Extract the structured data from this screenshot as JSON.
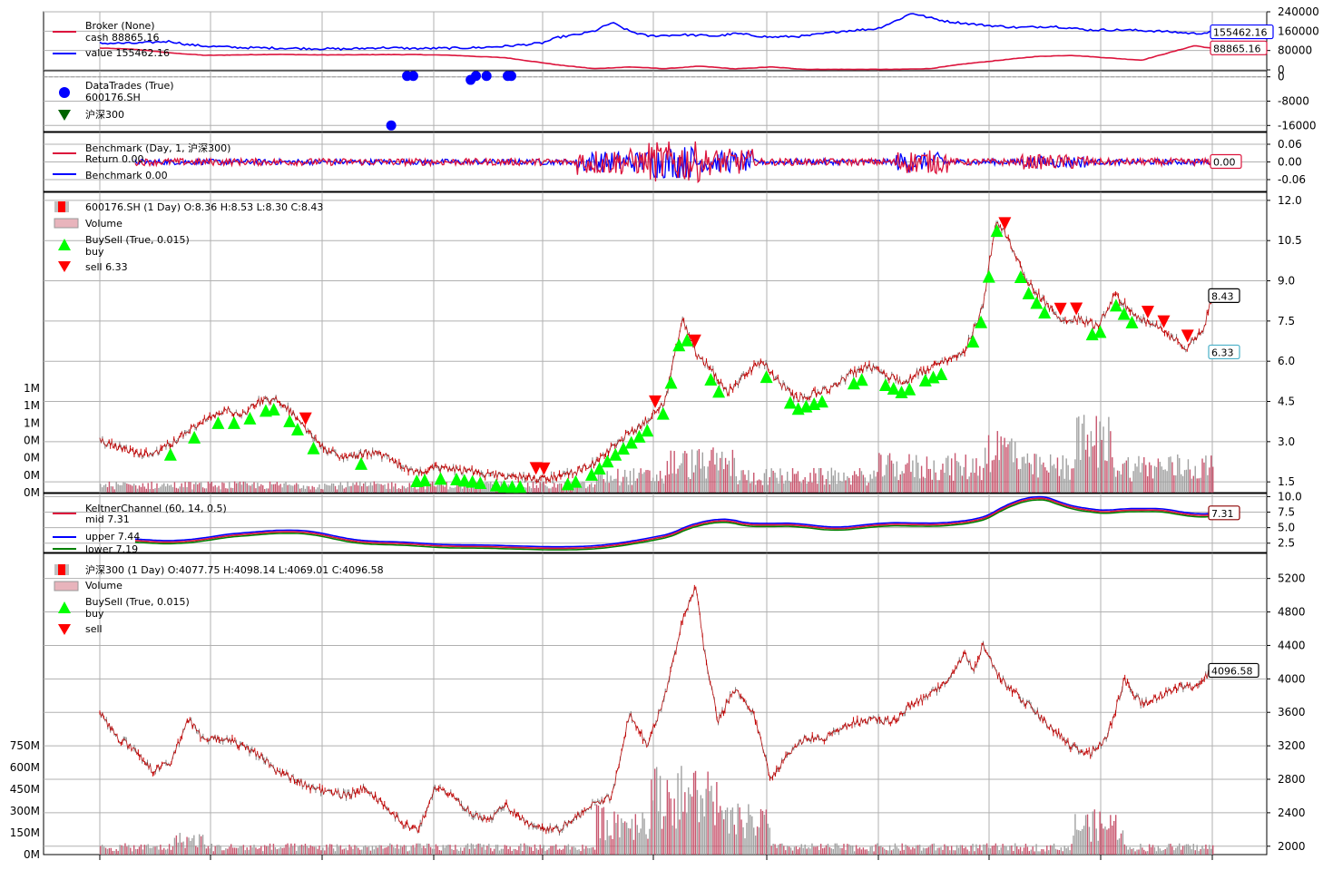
{
  "chart_data": [
    {
      "type": "line",
      "panel": "broker",
      "legend_title": "Broker (None)",
      "series": [
        {
          "name": "cash 88865.16",
          "color": "#dc143c",
          "points": [
            [
              0,
              90000
            ],
            [
              40,
              85000
            ],
            [
              80,
              70000
            ],
            [
              120,
              60000
            ],
            [
              160,
              62000
            ],
            [
              200,
              64000
            ],
            [
              240,
              62000
            ],
            [
              280,
              62000
            ],
            [
              320,
              63000
            ],
            [
              360,
              63000
            ],
            [
              400,
              60000
            ],
            [
              460,
              50000
            ],
            [
              520,
              20000
            ],
            [
              560,
              5000
            ],
            [
              600,
              12000
            ],
            [
              640,
              5000
            ],
            [
              680,
              15000
            ],
            [
              720,
              4000
            ],
            [
              760,
              12000
            ],
            [
              800,
              2000
            ],
            [
              860,
              2000
            ],
            [
              900,
              2000
            ],
            [
              940,
              5000
            ],
            [
              980,
              25000
            ],
            [
              1020,
              40000
            ],
            [
              1060,
              55000
            ],
            [
              1100,
              60000
            ],
            [
              1140,
              50000
            ],
            [
              1180,
              40000
            ],
            [
              1220,
              80000
            ],
            [
              1240,
              100000
            ],
            [
              1260,
              88865
            ]
          ]
        },
        {
          "name": "value 155462.16",
          "color": "#0000ff",
          "points": [
            [
              0,
              110000
            ],
            [
              40,
              110000
            ],
            [
              80,
              118000
            ],
            [
              100,
              104000
            ],
            [
              120,
              98000
            ],
            [
              160,
              92000
            ],
            [
              200,
              90000
            ],
            [
              240,
              88000
            ],
            [
              280,
              86000
            ],
            [
              320,
              92000
            ],
            [
              360,
              88000
            ],
            [
              400,
              90000
            ],
            [
              430,
              92000
            ],
            [
              460,
              98000
            ],
            [
              500,
              110000
            ],
            [
              520,
              135000
            ],
            [
              540,
              145000
            ],
            [
              560,
              160000
            ],
            [
              580,
              195000
            ],
            [
              600,
              160000
            ],
            [
              620,
              140000
            ],
            [
              660,
              145000
            ],
            [
              700,
              140000
            ],
            [
              720,
              150000
            ],
            [
              760,
              135000
            ],
            [
              800,
              140000
            ],
            [
              840,
              160000
            ],
            [
              880,
              170000
            ],
            [
              900,
              200000
            ],
            [
              920,
              235000
            ],
            [
              940,
              215000
            ],
            [
              960,
              200000
            ],
            [
              1000,
              185000
            ],
            [
              1040,
              175000
            ],
            [
              1080,
              180000
            ],
            [
              1120,
              165000
            ],
            [
              1160,
              165000
            ],
            [
              1200,
              160000
            ],
            [
              1240,
              150000
            ],
            [
              1260,
              155462
            ]
          ]
        }
      ],
      "y_ticks": [
        "240000",
        "160000",
        "80000",
        "0"
      ],
      "ylim": [
        0,
        240000
      ],
      "last_labels": [
        "155462.16",
        "88865.16"
      ]
    },
    {
      "type": "scatter",
      "panel": "trades",
      "legend_title": "DataTrades (True)",
      "legend": [
        "600176.SH",
        "沪深300"
      ],
      "points": [
        [
          348,
          0
        ],
        [
          355,
          0
        ],
        [
          420,
          -1000
        ],
        [
          426,
          0
        ],
        [
          438,
          0
        ],
        [
          462,
          0
        ],
        [
          466,
          0
        ],
        [
          330,
          -16000
        ]
      ],
      "y_ticks": [
        "0",
        "-8000",
        "-16000"
      ],
      "ylim": [
        -18000,
        2000
      ]
    },
    {
      "type": "line",
      "panel": "benchmark",
      "legend_title": "Benchmark (Day, 1, 沪深300)",
      "series": [
        {
          "name": "Return 0.00",
          "color": "#dc143c"
        },
        {
          "name": "Benchmark 0.00",
          "color": "#0000ff"
        }
      ],
      "y_ticks": [
        "0.06",
        "0.00",
        "-0.06"
      ],
      "ylim": [
        -0.1,
        0.1
      ],
      "last_label": "0.00"
    },
    {
      "type": "line",
      "panel": "stock",
      "legend": [
        "600176.SH (1 Day) O:8.36 H:8.53 L:8.30 C:8.43",
        "Volume",
        "BuySell (True, 0.015)",
        "buy",
        "sell 6.33"
      ],
      "close_points": [
        [
          0,
          3.1
        ],
        [
          20,
          2.8
        ],
        [
          40,
          2.6
        ],
        [
          60,
          2.5
        ],
        [
          80,
          2.9
        ],
        [
          100,
          3.4
        ],
        [
          120,
          3.8
        ],
        [
          140,
          4.2
        ],
        [
          160,
          4.0
        ],
        [
          180,
          4.5
        ],
        [
          200,
          4.6
        ],
        [
          220,
          4.0
        ],
        [
          240,
          3.2
        ],
        [
          260,
          2.6
        ],
        [
          280,
          2.4
        ],
        [
          300,
          2.6
        ],
        [
          320,
          2.5
        ],
        [
          340,
          2.1
        ],
        [
          360,
          1.9
        ],
        [
          380,
          2.0
        ],
        [
          400,
          2.0
        ],
        [
          420,
          1.9
        ],
        [
          440,
          1.8
        ],
        [
          460,
          1.7
        ],
        [
          480,
          1.7
        ],
        [
          500,
          1.6
        ],
        [
          520,
          1.7
        ],
        [
          540,
          1.9
        ],
        [
          560,
          2.2
        ],
        [
          580,
          2.8
        ],
        [
          600,
          3.3
        ],
        [
          620,
          3.8
        ],
        [
          640,
          4.5
        ],
        [
          660,
          7.6
        ],
        [
          675,
          6.3
        ],
        [
          690,
          5.8
        ],
        [
          710,
          4.8
        ],
        [
          730,
          5.5
        ],
        [
          750,
          6.0
        ],
        [
          770,
          5.2
        ],
        [
          790,
          4.6
        ],
        [
          810,
          4.8
        ],
        [
          830,
          5.0
        ],
        [
          850,
          5.5
        ],
        [
          870,
          5.8
        ],
        [
          890,
          5.5
        ],
        [
          910,
          5.2
        ],
        [
          930,
          5.6
        ],
        [
          960,
          6.0
        ],
        [
          980,
          6.4
        ],
        [
          1000,
          8.0
        ],
        [
          1015,
          11.3
        ],
        [
          1030,
          10.5
        ],
        [
          1050,
          9.0
        ],
        [
          1070,
          8.2
        ],
        [
          1090,
          7.5
        ],
        [
          1110,
          7.6
        ],
        [
          1130,
          7.3
        ],
        [
          1150,
          8.5
        ],
        [
          1170,
          7.8
        ],
        [
          1190,
          7.4
        ],
        [
          1210,
          7.0
        ],
        [
          1230,
          6.5
        ],
        [
          1250,
          7.2
        ],
        [
          1260,
          8.43
        ]
      ],
      "y_ticks": [
        "12.0",
        "10.5",
        "9.0",
        "7.5",
        "6.0",
        "4.5",
        "3.0",
        "1.5"
      ],
      "ylim": [
        1.1,
        12.3
      ],
      "vol_ticks": [
        "1M",
        "1M",
        "1M",
        "0M",
        "0M",
        "0M",
        "0M"
      ],
      "last_labels": [
        "8.43",
        "6.33"
      ]
    },
    {
      "type": "line",
      "panel": "keltner",
      "legend_title": "KeltnerChannel (60, 14, 0.5)",
      "series": [
        {
          "name": "mid 7.31",
          "color": "#dc143c"
        },
        {
          "name": "upper 7.44",
          "color": "#0000ff"
        },
        {
          "name": "lower 7.19",
          "color": "#008000"
        }
      ],
      "y_ticks": [
        "10.0",
        "7.5",
        "5.0",
        "2.5"
      ],
      "ylim": [
        1.0,
        10.5
      ],
      "last_label": "7.31"
    },
    {
      "type": "line",
      "panel": "index",
      "legend": [
        "沪深300 (1 Day) O:4077.75 H:4098.14 L:4069.01 C:4096.58",
        "Volume",
        "BuySell (True, 0.015)",
        "buy",
        "sell"
      ],
      "close_points": [
        [
          0,
          3600
        ],
        [
          20,
          3300
        ],
        [
          40,
          3150
        ],
        [
          60,
          2900
        ],
        [
          80,
          3000
        ],
        [
          100,
          3500
        ],
        [
          120,
          3250
        ],
        [
          140,
          3300
        ],
        [
          160,
          3200
        ],
        [
          180,
          3100
        ],
        [
          200,
          2900
        ],
        [
          220,
          2800
        ],
        [
          240,
          2700
        ],
        [
          260,
          2650
        ],
        [
          280,
          2600
        ],
        [
          300,
          2700
        ],
        [
          320,
          2500
        ],
        [
          340,
          2300
        ],
        [
          360,
          2200
        ],
        [
          380,
          2700
        ],
        [
          400,
          2600
        ],
        [
          420,
          2400
        ],
        [
          440,
          2300
        ],
        [
          460,
          2500
        ],
        [
          480,
          2300
        ],
        [
          500,
          2200
        ],
        [
          520,
          2200
        ],
        [
          540,
          2350
        ],
        [
          560,
          2500
        ],
        [
          580,
          2600
        ],
        [
          600,
          3600
        ],
        [
          620,
          3200
        ],
        [
          640,
          3800
        ],
        [
          660,
          4700
        ],
        [
          675,
          5100
        ],
        [
          685,
          4300
        ],
        [
          700,
          3500
        ],
        [
          720,
          3900
        ],
        [
          740,
          3600
        ],
        [
          760,
          2800
        ],
        [
          780,
          3100
        ],
        [
          800,
          3300
        ],
        [
          820,
          3300
        ],
        [
          840,
          3400
        ],
        [
          860,
          3500
        ],
        [
          880,
          3500
        ],
        [
          900,
          3500
        ],
        [
          920,
          3700
        ],
        [
          940,
          3800
        ],
        [
          960,
          4000
        ],
        [
          980,
          4300
        ],
        [
          990,
          4100
        ],
        [
          1000,
          4400
        ],
        [
          1020,
          4000
        ],
        [
          1040,
          3800
        ],
        [
          1060,
          3600
        ],
        [
          1080,
          3400
        ],
        [
          1100,
          3200
        ],
        [
          1120,
          3100
        ],
        [
          1140,
          3300
        ],
        [
          1150,
          3600
        ],
        [
          1160,
          4000
        ],
        [
          1180,
          3700
        ],
        [
          1200,
          3800
        ],
        [
          1220,
          3900
        ],
        [
          1240,
          3900
        ],
        [
          1260,
          4096.58
        ]
      ],
      "y_ticks": [
        "5200",
        "4800",
        "4400",
        "4000",
        "3600",
        "3200",
        "2800",
        "2400",
        "2000"
      ],
      "ylim": [
        1900,
        5500
      ],
      "vol_ticks": [
        "750M",
        "600M",
        "450M",
        "300M",
        "150M",
        "0M"
      ],
      "last_label": "4096.58"
    }
  ]
}
